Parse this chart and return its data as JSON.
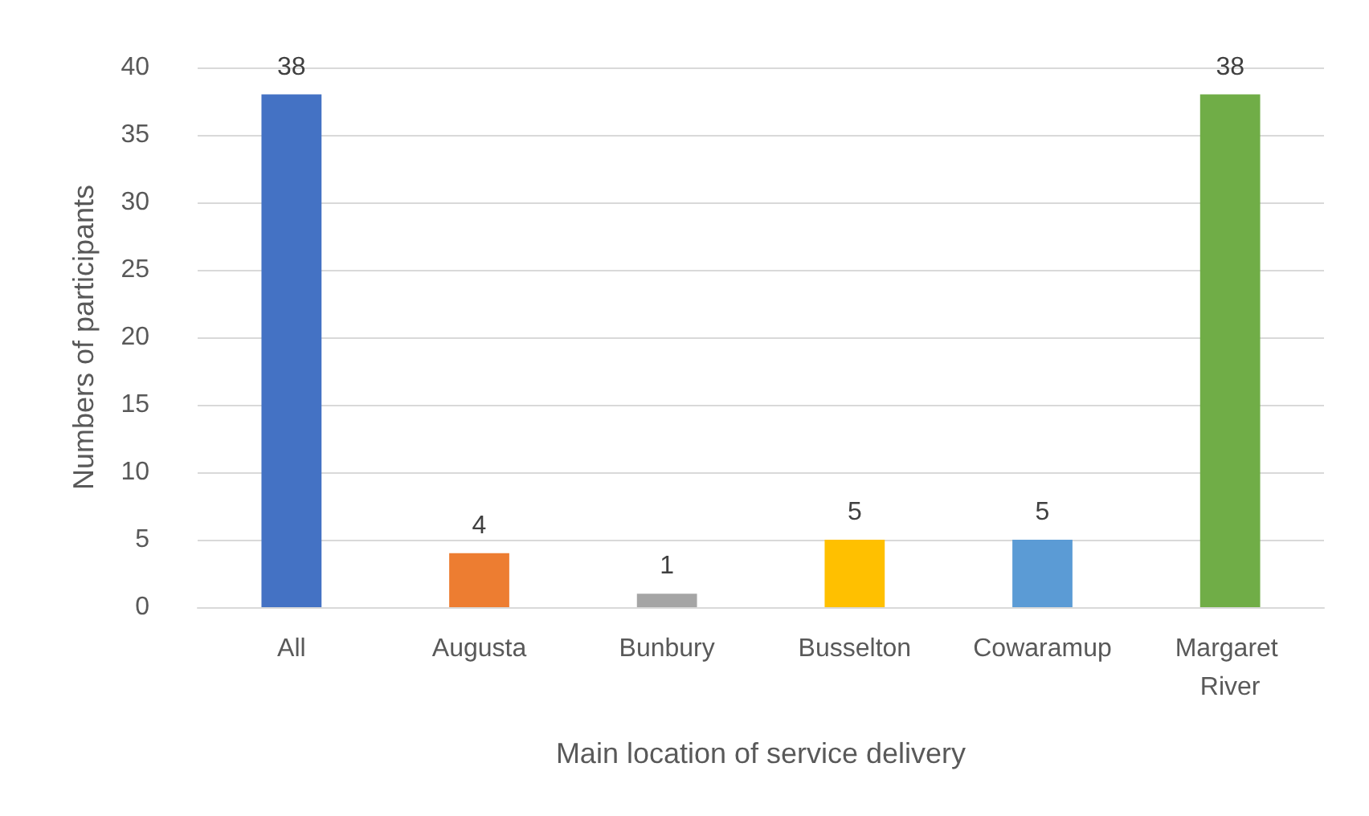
{
  "chart_data": {
    "type": "bar",
    "xlabel": "Main location of service delivery",
    "ylabel": "Numbers of participants",
    "categories": [
      "All",
      "Augusta",
      "Bunbury",
      "Busselton",
      "Cowaramup",
      "Margaret River"
    ],
    "values": [
      38,
      4,
      1,
      5,
      5,
      38
    ],
    "colors": [
      "#4472c4",
      "#ed7d31",
      "#a5a5a5",
      "#ffc000",
      "#5b9bd5",
      "#70ad47"
    ],
    "ylim": [
      0,
      40
    ],
    "yticks": [
      0,
      5,
      10,
      15,
      20,
      25,
      30,
      35,
      40
    ],
    "grid": "y",
    "data_labels": true
  }
}
